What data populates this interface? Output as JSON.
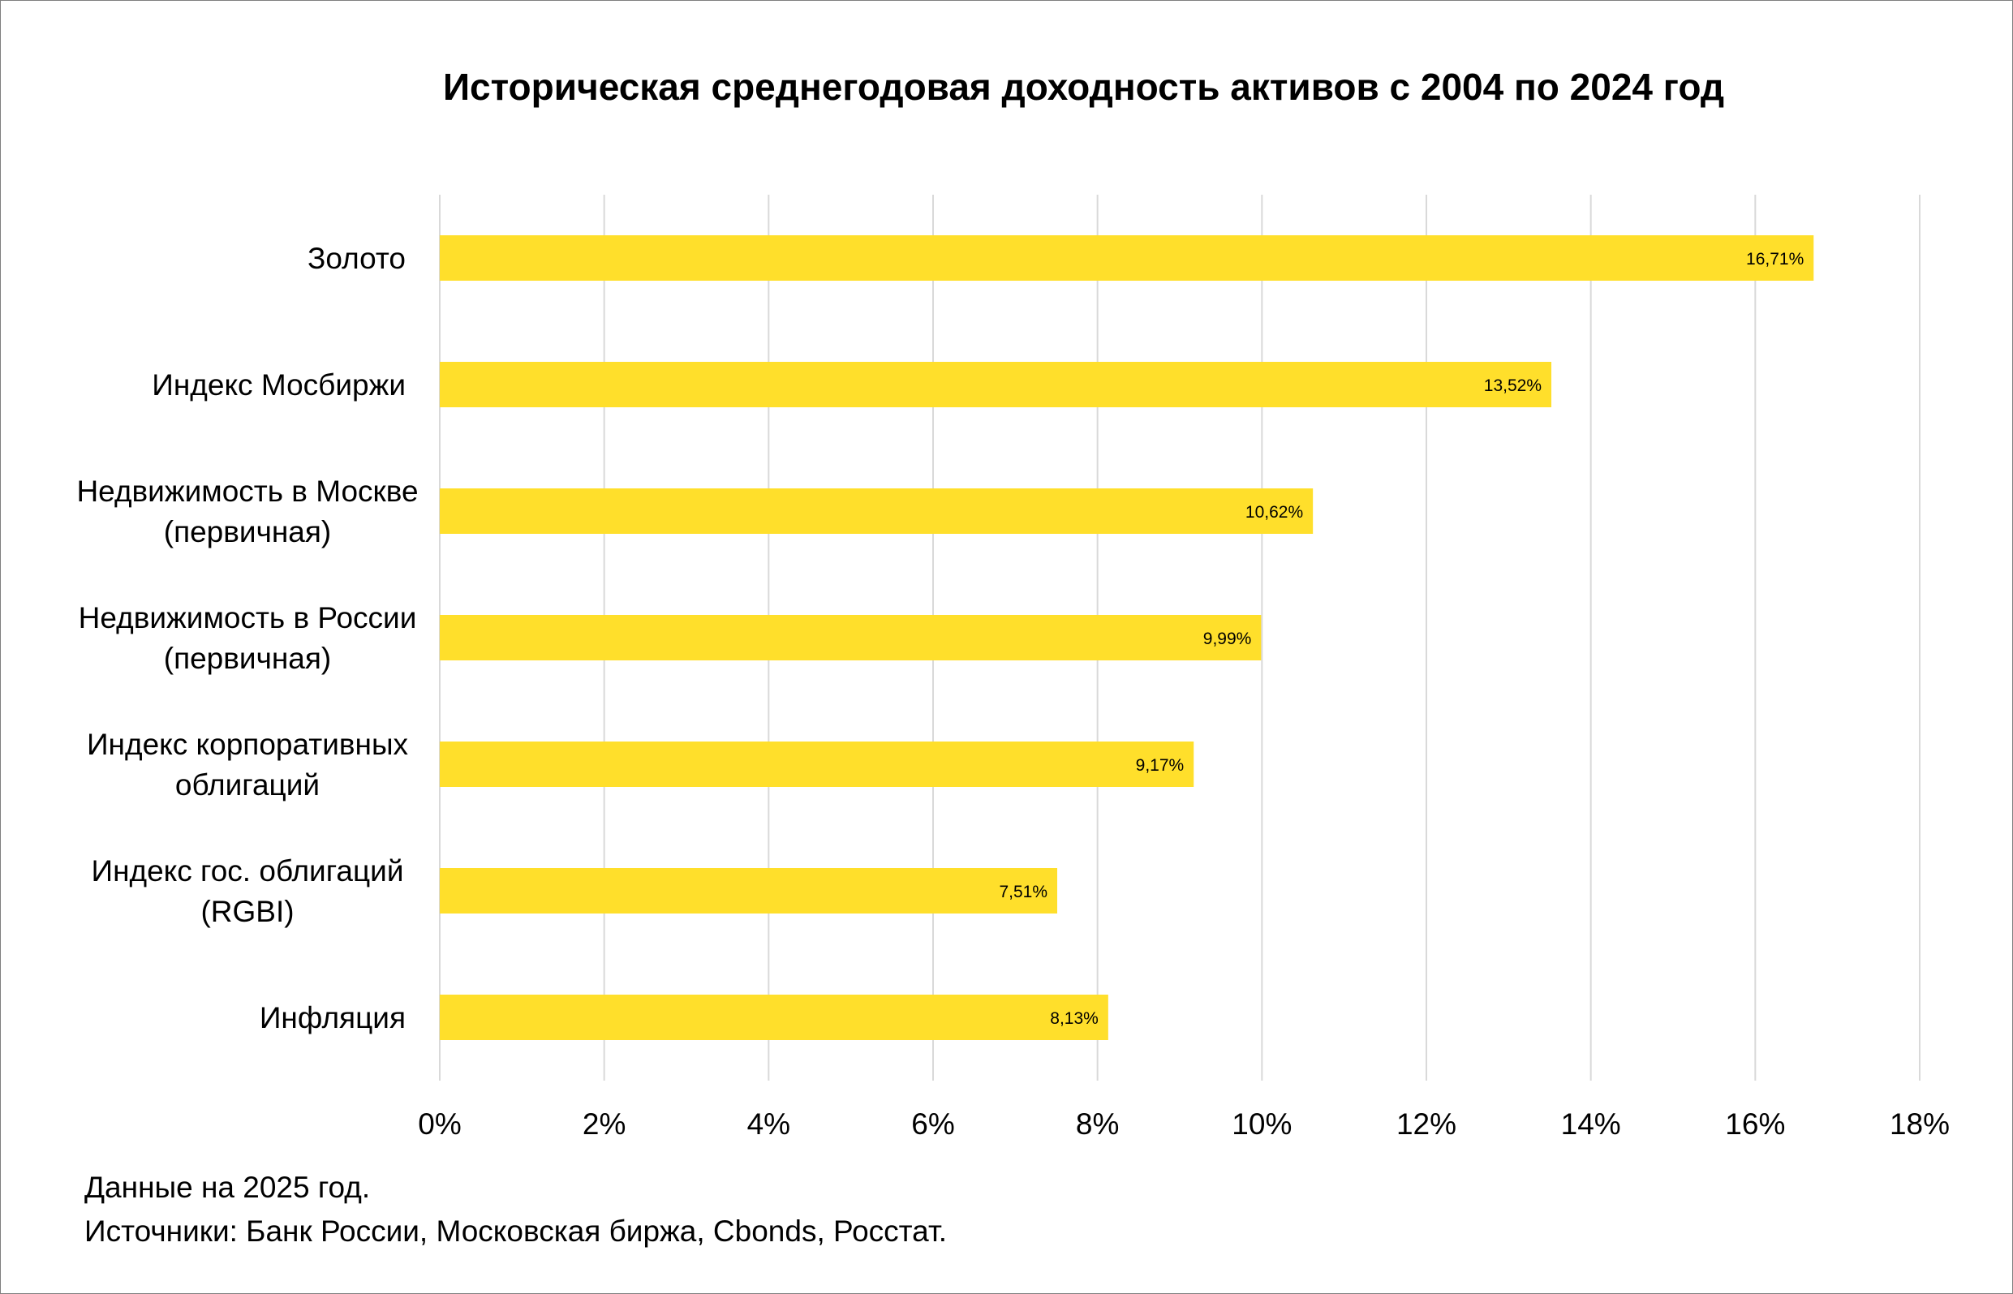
{
  "chart_data": {
    "type": "bar",
    "orientation": "horizontal",
    "title": "Историческая среднегодовая доходность активов с 2004 по 2024 год",
    "categories": [
      "Золото",
      "Индекс Мосбиржи",
      "Недвижимость в Москве (первичная)",
      "Недвижимость в России (первичная)",
      "Индекс корпоративных облигаций",
      "Индекс гос. облигаций (RGBI)",
      "Инфляция"
    ],
    "category_lines": [
      [
        "Золото"
      ],
      [
        "Индекс Мосбиржи"
      ],
      [
        "Недвижимость в Москве",
        "(первичная)"
      ],
      [
        "Недвижимость в России",
        "(первичная)"
      ],
      [
        "Индекс корпоративных",
        "облигаций"
      ],
      [
        "Индекс гос. облигаций",
        "(RGBI)"
      ],
      [
        "Инфляция"
      ]
    ],
    "values": [
      16.71,
      13.52,
      10.62,
      9.99,
      9.17,
      7.51,
      8.13
    ],
    "data_labels": [
      "16,71%",
      "13,52%",
      "10,62%",
      "9,99%",
      "9,17%",
      "7,51%",
      "8,13%"
    ],
    "xlim": [
      0,
      18
    ],
    "xticks": [
      0,
      2,
      4,
      6,
      8,
      10,
      12,
      14,
      16,
      18
    ],
    "xtick_labels": [
      "0%",
      "2%",
      "4%",
      "6%",
      "8%",
      "10%",
      "12%",
      "14%",
      "16%",
      "18%"
    ],
    "grid": "vertical",
    "legend": "none",
    "bar_color": "#FFDF2B",
    "grid_color": "#D9D9D9"
  },
  "footnotes": {
    "line1": "Данные на 2025 год.",
    "line2": "Источники: Банк России, Московская биржа, Cbonds, Росстат."
  }
}
